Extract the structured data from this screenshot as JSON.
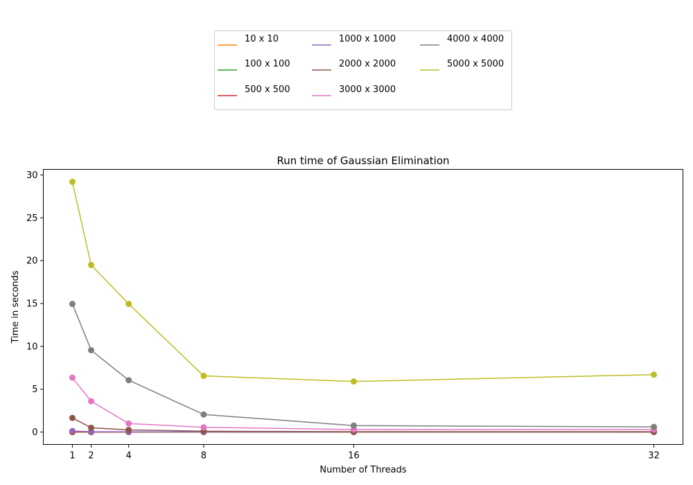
{
  "chart_data": {
    "type": "line",
    "title": "Run time of Gaussian Elimination",
    "xlabel": "Number of Threads",
    "ylabel": "Time in seconds",
    "x": [
      1,
      2,
      4,
      8,
      16,
      32
    ],
    "xticks": [
      1,
      2,
      4,
      8,
      16,
      32
    ],
    "yticks": [
      0,
      5,
      10,
      15,
      20,
      25,
      30
    ],
    "xlim": [
      -0.55,
      33.55
    ],
    "ylim": [
      -1.45,
      30.65
    ],
    "grid": false,
    "legend_position": "top-center",
    "legend_columns": 3,
    "series": [
      {
        "name": "10 x 10",
        "color": "#ff7f0e",
        "values": [
          0.0,
          0.0,
          0.0,
          0.0,
          0.0,
          0.0
        ]
      },
      {
        "name": "100 x 100",
        "color": "#2ca02c",
        "values": [
          0.0,
          0.0,
          0.0,
          0.0,
          0.0,
          0.0
        ]
      },
      {
        "name": "500 x 500",
        "color": "#d62728",
        "values": [
          0.02,
          0.01,
          0.01,
          0.01,
          0.01,
          0.01
        ]
      },
      {
        "name": "1000 x 1000",
        "color": "#9467bd",
        "values": [
          0.12,
          0.05,
          0.03,
          0.02,
          0.02,
          0.02
        ]
      },
      {
        "name": "2000 x 2000",
        "color": "#8c564b",
        "values": [
          1.65,
          0.5,
          0.25,
          0.1,
          0.05,
          0.05
        ]
      },
      {
        "name": "3000 x 3000",
        "color": "#e377c2",
        "values": [
          6.35,
          3.6,
          1.0,
          0.55,
          0.3,
          0.3
        ]
      },
      {
        "name": "4000 x 4000",
        "color": "#7f7f7f",
        "values": [
          14.95,
          9.55,
          6.05,
          2.05,
          0.75,
          0.6
        ]
      },
      {
        "name": "5000 x 5000",
        "color": "#bcbd22",
        "values": [
          29.2,
          19.5,
          14.95,
          6.55,
          5.9,
          6.7
        ]
      }
    ]
  }
}
